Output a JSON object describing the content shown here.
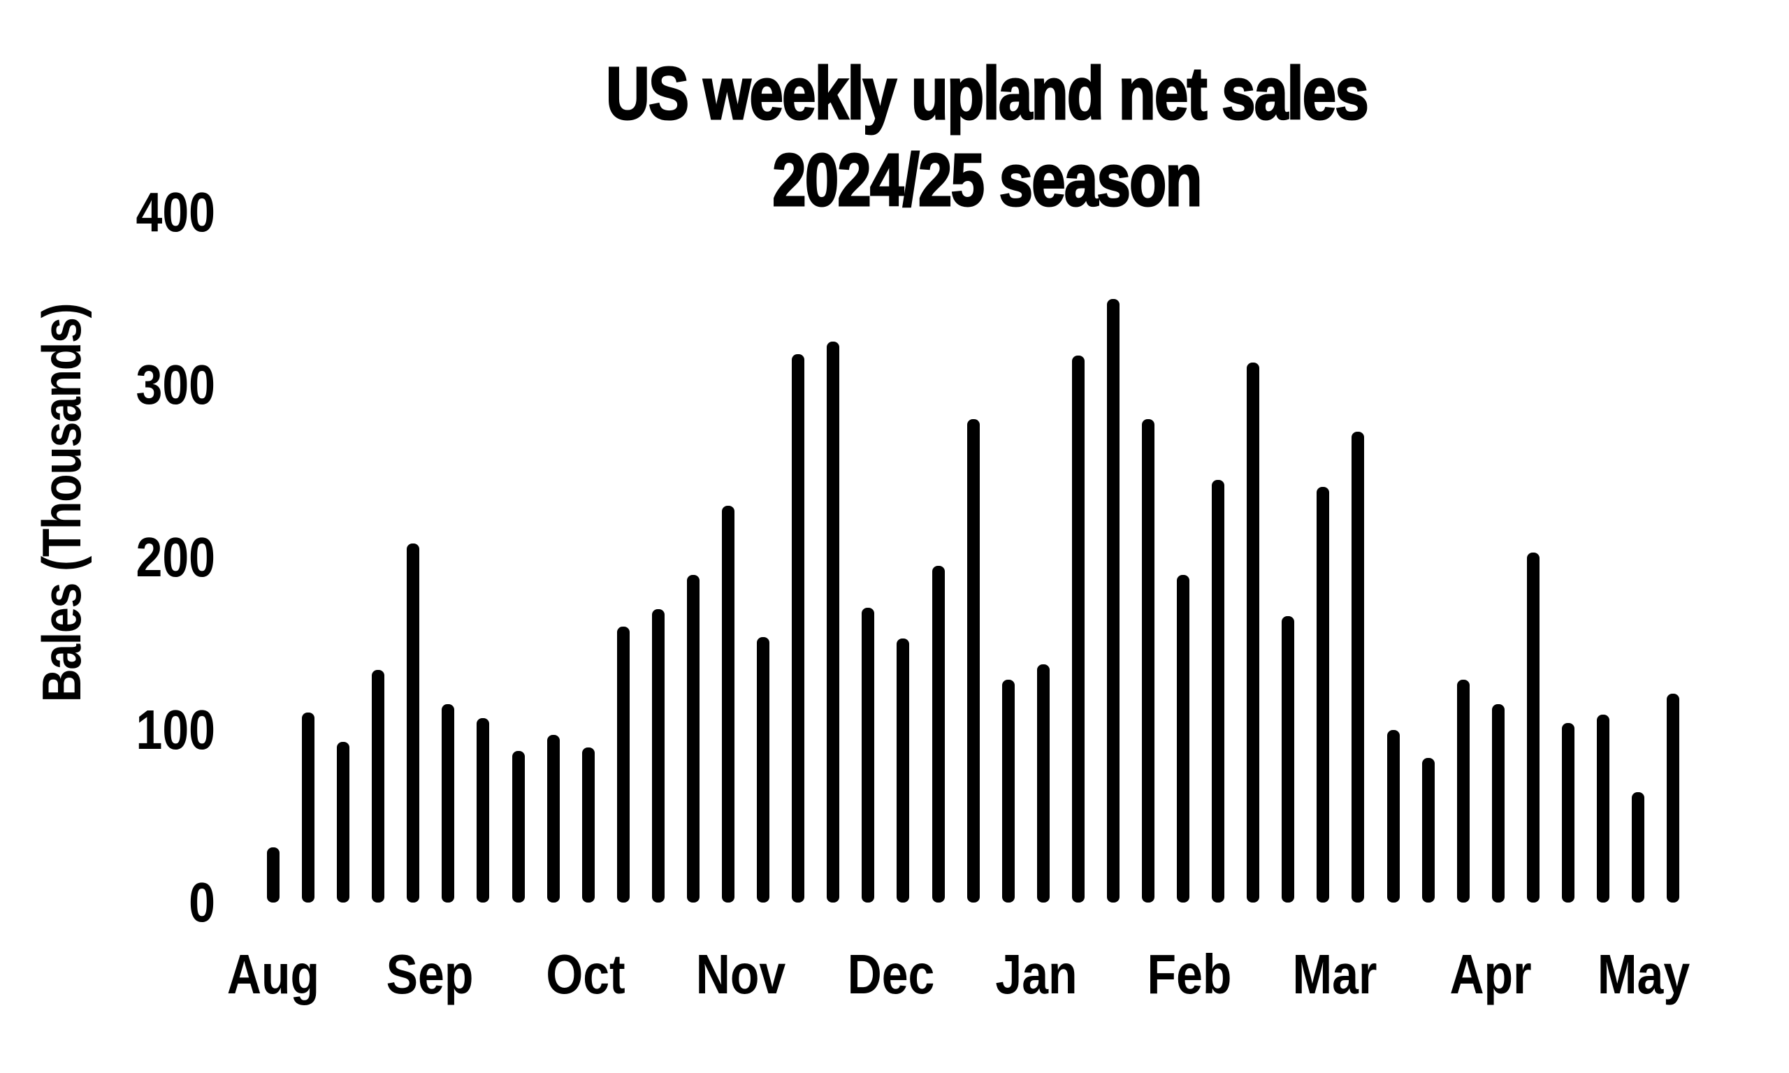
{
  "title": {
    "line1": "US weekly upland net sales",
    "line2": "2024/25 season"
  },
  "chart_data": {
    "type": "bar",
    "title": "US weekly upland net sales 2024/25 season",
    "xlabel": "",
    "ylabel": "Bales (Thousands)",
    "ylim": [
      0,
      400
    ],
    "yticks": [
      0,
      100,
      200,
      300,
      400
    ],
    "x_tick_labels": [
      "Aug",
      "Sep",
      "Oct",
      "Nov",
      "Dec",
      "Jan",
      "Feb",
      "Mar",
      "Apr",
      "May"
    ],
    "grid": "off",
    "legend_position": "none",
    "bar_color": "#000000",
    "background_color": "#ffffff",
    "series": [
      {
        "name": "Weekly upland net sales",
        "values": [
          32,
          110,
          93,
          135,
          208,
          115,
          107,
          88,
          97,
          90,
          160,
          170,
          190,
          230,
          154,
          318,
          325,
          171,
          153,
          195,
          280,
          129,
          138,
          317,
          350,
          280,
          190,
          245,
          313,
          166,
          241,
          273,
          100,
          84,
          129,
          115,
          203,
          104,
          109,
          64,
          121
        ]
      }
    ]
  }
}
